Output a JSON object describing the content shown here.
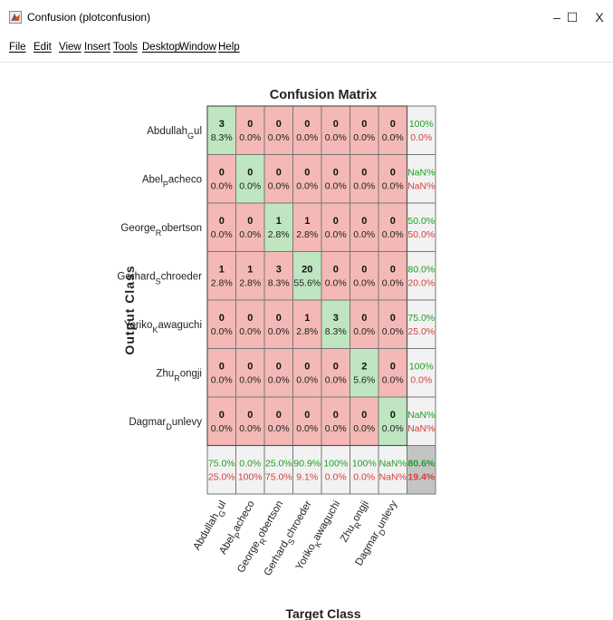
{
  "window": {
    "title": "Confusion (plotconfusion)",
    "minimize_glyph": "–",
    "maximize_glyph": "☐",
    "close_glyph": "X",
    "icon": "matlab-figure-icon"
  },
  "menu": {
    "items": [
      "File",
      "Edit",
      "View",
      "Insert",
      "Tools",
      "Desktop",
      "Window",
      "Help"
    ]
  },
  "colors": {
    "correct": "#bfe6c0",
    "incorrect": "#f4b9b6",
    "summary": "#f2f2f2",
    "total": "#c4c4c4",
    "green_text": "#1e9e23",
    "red_text": "#d3403c",
    "grid": "#777777"
  },
  "chart_data": {
    "type": "heatmap",
    "title": "Confusion Matrix",
    "xlabel": "Target Class",
    "ylabel": "Output Class",
    "classes": [
      {
        "base": "Abdullah",
        "sub": "G",
        "rest": "ul"
      },
      {
        "base": "Abel",
        "sub": "P",
        "rest": "acheco"
      },
      {
        "base": "George",
        "sub": "R",
        "rest": "obertson"
      },
      {
        "base": "Gerhard",
        "sub": "S",
        "rest": "chroeder"
      },
      {
        "base": "Yoriko",
        "sub": "K",
        "rest": "awaguchi"
      },
      {
        "base": "Zhu",
        "sub": "R",
        "rest": "ongji"
      },
      {
        "base": "Dagmar",
        "sub": "D",
        "rest": "unlevy"
      }
    ],
    "cells": [
      [
        {
          "n": "3",
          "p": "8.3%"
        },
        {
          "n": "0",
          "p": "0.0%"
        },
        {
          "n": "0",
          "p": "0.0%"
        },
        {
          "n": "0",
          "p": "0.0%"
        },
        {
          "n": "0",
          "p": "0.0%"
        },
        {
          "n": "0",
          "p": "0.0%"
        },
        {
          "n": "0",
          "p": "0.0%"
        }
      ],
      [
        {
          "n": "0",
          "p": "0.0%"
        },
        {
          "n": "0",
          "p": "0.0%"
        },
        {
          "n": "0",
          "p": "0.0%"
        },
        {
          "n": "0",
          "p": "0.0%"
        },
        {
          "n": "0",
          "p": "0.0%"
        },
        {
          "n": "0",
          "p": "0.0%"
        },
        {
          "n": "0",
          "p": "0.0%"
        }
      ],
      [
        {
          "n": "0",
          "p": "0.0%"
        },
        {
          "n": "0",
          "p": "0.0%"
        },
        {
          "n": "1",
          "p": "2.8%"
        },
        {
          "n": "1",
          "p": "2.8%"
        },
        {
          "n": "0",
          "p": "0.0%"
        },
        {
          "n": "0",
          "p": "0.0%"
        },
        {
          "n": "0",
          "p": "0.0%"
        }
      ],
      [
        {
          "n": "1",
          "p": "2.8%"
        },
        {
          "n": "1",
          "p": "2.8%"
        },
        {
          "n": "3",
          "p": "8.3%"
        },
        {
          "n": "20",
          "p": "55.6%"
        },
        {
          "n": "0",
          "p": "0.0%"
        },
        {
          "n": "0",
          "p": "0.0%"
        },
        {
          "n": "0",
          "p": "0.0%"
        }
      ],
      [
        {
          "n": "0",
          "p": "0.0%"
        },
        {
          "n": "0",
          "p": "0.0%"
        },
        {
          "n": "0",
          "p": "0.0%"
        },
        {
          "n": "1",
          "p": "2.8%"
        },
        {
          "n": "3",
          "p": "8.3%"
        },
        {
          "n": "0",
          "p": "0.0%"
        },
        {
          "n": "0",
          "p": "0.0%"
        }
      ],
      [
        {
          "n": "0",
          "p": "0.0%"
        },
        {
          "n": "0",
          "p": "0.0%"
        },
        {
          "n": "0",
          "p": "0.0%"
        },
        {
          "n": "0",
          "p": "0.0%"
        },
        {
          "n": "0",
          "p": "0.0%"
        },
        {
          "n": "2",
          "p": "5.6%"
        },
        {
          "n": "0",
          "p": "0.0%"
        }
      ],
      [
        {
          "n": "0",
          "p": "0.0%"
        },
        {
          "n": "0",
          "p": "0.0%"
        },
        {
          "n": "0",
          "p": "0.0%"
        },
        {
          "n": "0",
          "p": "0.0%"
        },
        {
          "n": "0",
          "p": "0.0%"
        },
        {
          "n": "0",
          "p": "0.0%"
        },
        {
          "n": "0",
          "p": "0.0%"
        }
      ]
    ],
    "row_summary": [
      {
        "correct": "100%",
        "wrong": "0.0%"
      },
      {
        "correct": "NaN%",
        "wrong": "NaN%"
      },
      {
        "correct": "50.0%",
        "wrong": "50.0%"
      },
      {
        "correct": "80.0%",
        "wrong": "20.0%"
      },
      {
        "correct": "75.0%",
        "wrong": "25.0%"
      },
      {
        "correct": "100%",
        "wrong": "0.0%"
      },
      {
        "correct": "NaN%",
        "wrong": "NaN%"
      }
    ],
    "col_summary": [
      {
        "correct": "75.0%",
        "wrong": "25.0%"
      },
      {
        "correct": "0.0%",
        "wrong": "100%"
      },
      {
        "correct": "25.0%",
        "wrong": "75.0%"
      },
      {
        "correct": "90.9%",
        "wrong": "9.1%"
      },
      {
        "correct": "100%",
        "wrong": "0.0%"
      },
      {
        "correct": "100%",
        "wrong": "0.0%"
      },
      {
        "correct": "NaN%",
        "wrong": "NaN%"
      }
    ],
    "total": {
      "correct": "80.6%",
      "wrong": "19.4%"
    }
  }
}
